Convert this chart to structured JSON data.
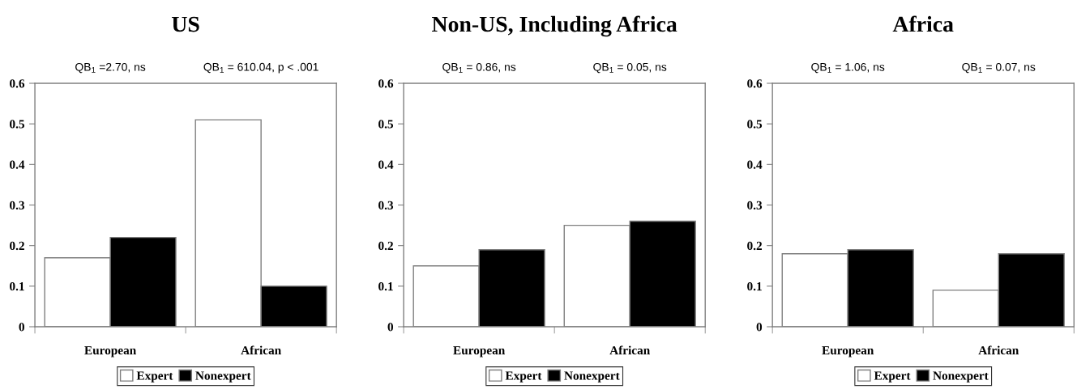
{
  "chart_data": [
    {
      "type": "bar",
      "title": "US",
      "categories": [
        "European",
        "African"
      ],
      "series": [
        {
          "name": "Expert",
          "color": "#ffffff",
          "values": [
            0.17,
            0.51
          ]
        },
        {
          "name": "Nonexpert",
          "color": "#000000",
          "values": [
            0.22,
            0.1
          ]
        }
      ],
      "ylim": [
        0,
        0.6
      ],
      "yticks": [
        0,
        0.1,
        0.2,
        0.3,
        0.4,
        0.5,
        0.6
      ],
      "annotations": [
        "QB$_{1}$ =2.70, ns",
        "QB$_{1}$ = 610.04, p < .001"
      ],
      "legend": "bottom",
      "grid": false
    },
    {
      "type": "bar",
      "title": "Non-US, Including Africa",
      "categories": [
        "European",
        "African"
      ],
      "series": [
        {
          "name": "Expert",
          "color": "#ffffff",
          "values": [
            0.15,
            0.25
          ]
        },
        {
          "name": "Nonexpert",
          "color": "#000000",
          "values": [
            0.19,
            0.26
          ]
        }
      ],
      "ylim": [
        0,
        0.6
      ],
      "yticks": [
        0,
        0.1,
        0.2,
        0.3,
        0.4,
        0.5,
        0.6
      ],
      "annotations": [
        "QB$_{1}$ = 0.86, ns",
        "QB$_{1}$ = 0.05, ns"
      ],
      "legend": "bottom",
      "grid": false
    },
    {
      "type": "bar",
      "title": "Africa",
      "categories": [
        "European",
        "African"
      ],
      "series": [
        {
          "name": "Expert",
          "color": "#ffffff",
          "values": [
            0.18,
            0.09
          ]
        },
        {
          "name": "Nonexpert",
          "color": "#000000",
          "values": [
            0.19,
            0.18
          ]
        }
      ],
      "ylim": [
        0,
        0.6
      ],
      "yticks": [
        0,
        0.1,
        0.2,
        0.3,
        0.4,
        0.5,
        0.6
      ],
      "annotations": [
        "QB$_{1}$ = 1.06, ns",
        "QB$_{1}$ = 0.07, ns"
      ],
      "legend": "bottom",
      "grid": false
    }
  ]
}
